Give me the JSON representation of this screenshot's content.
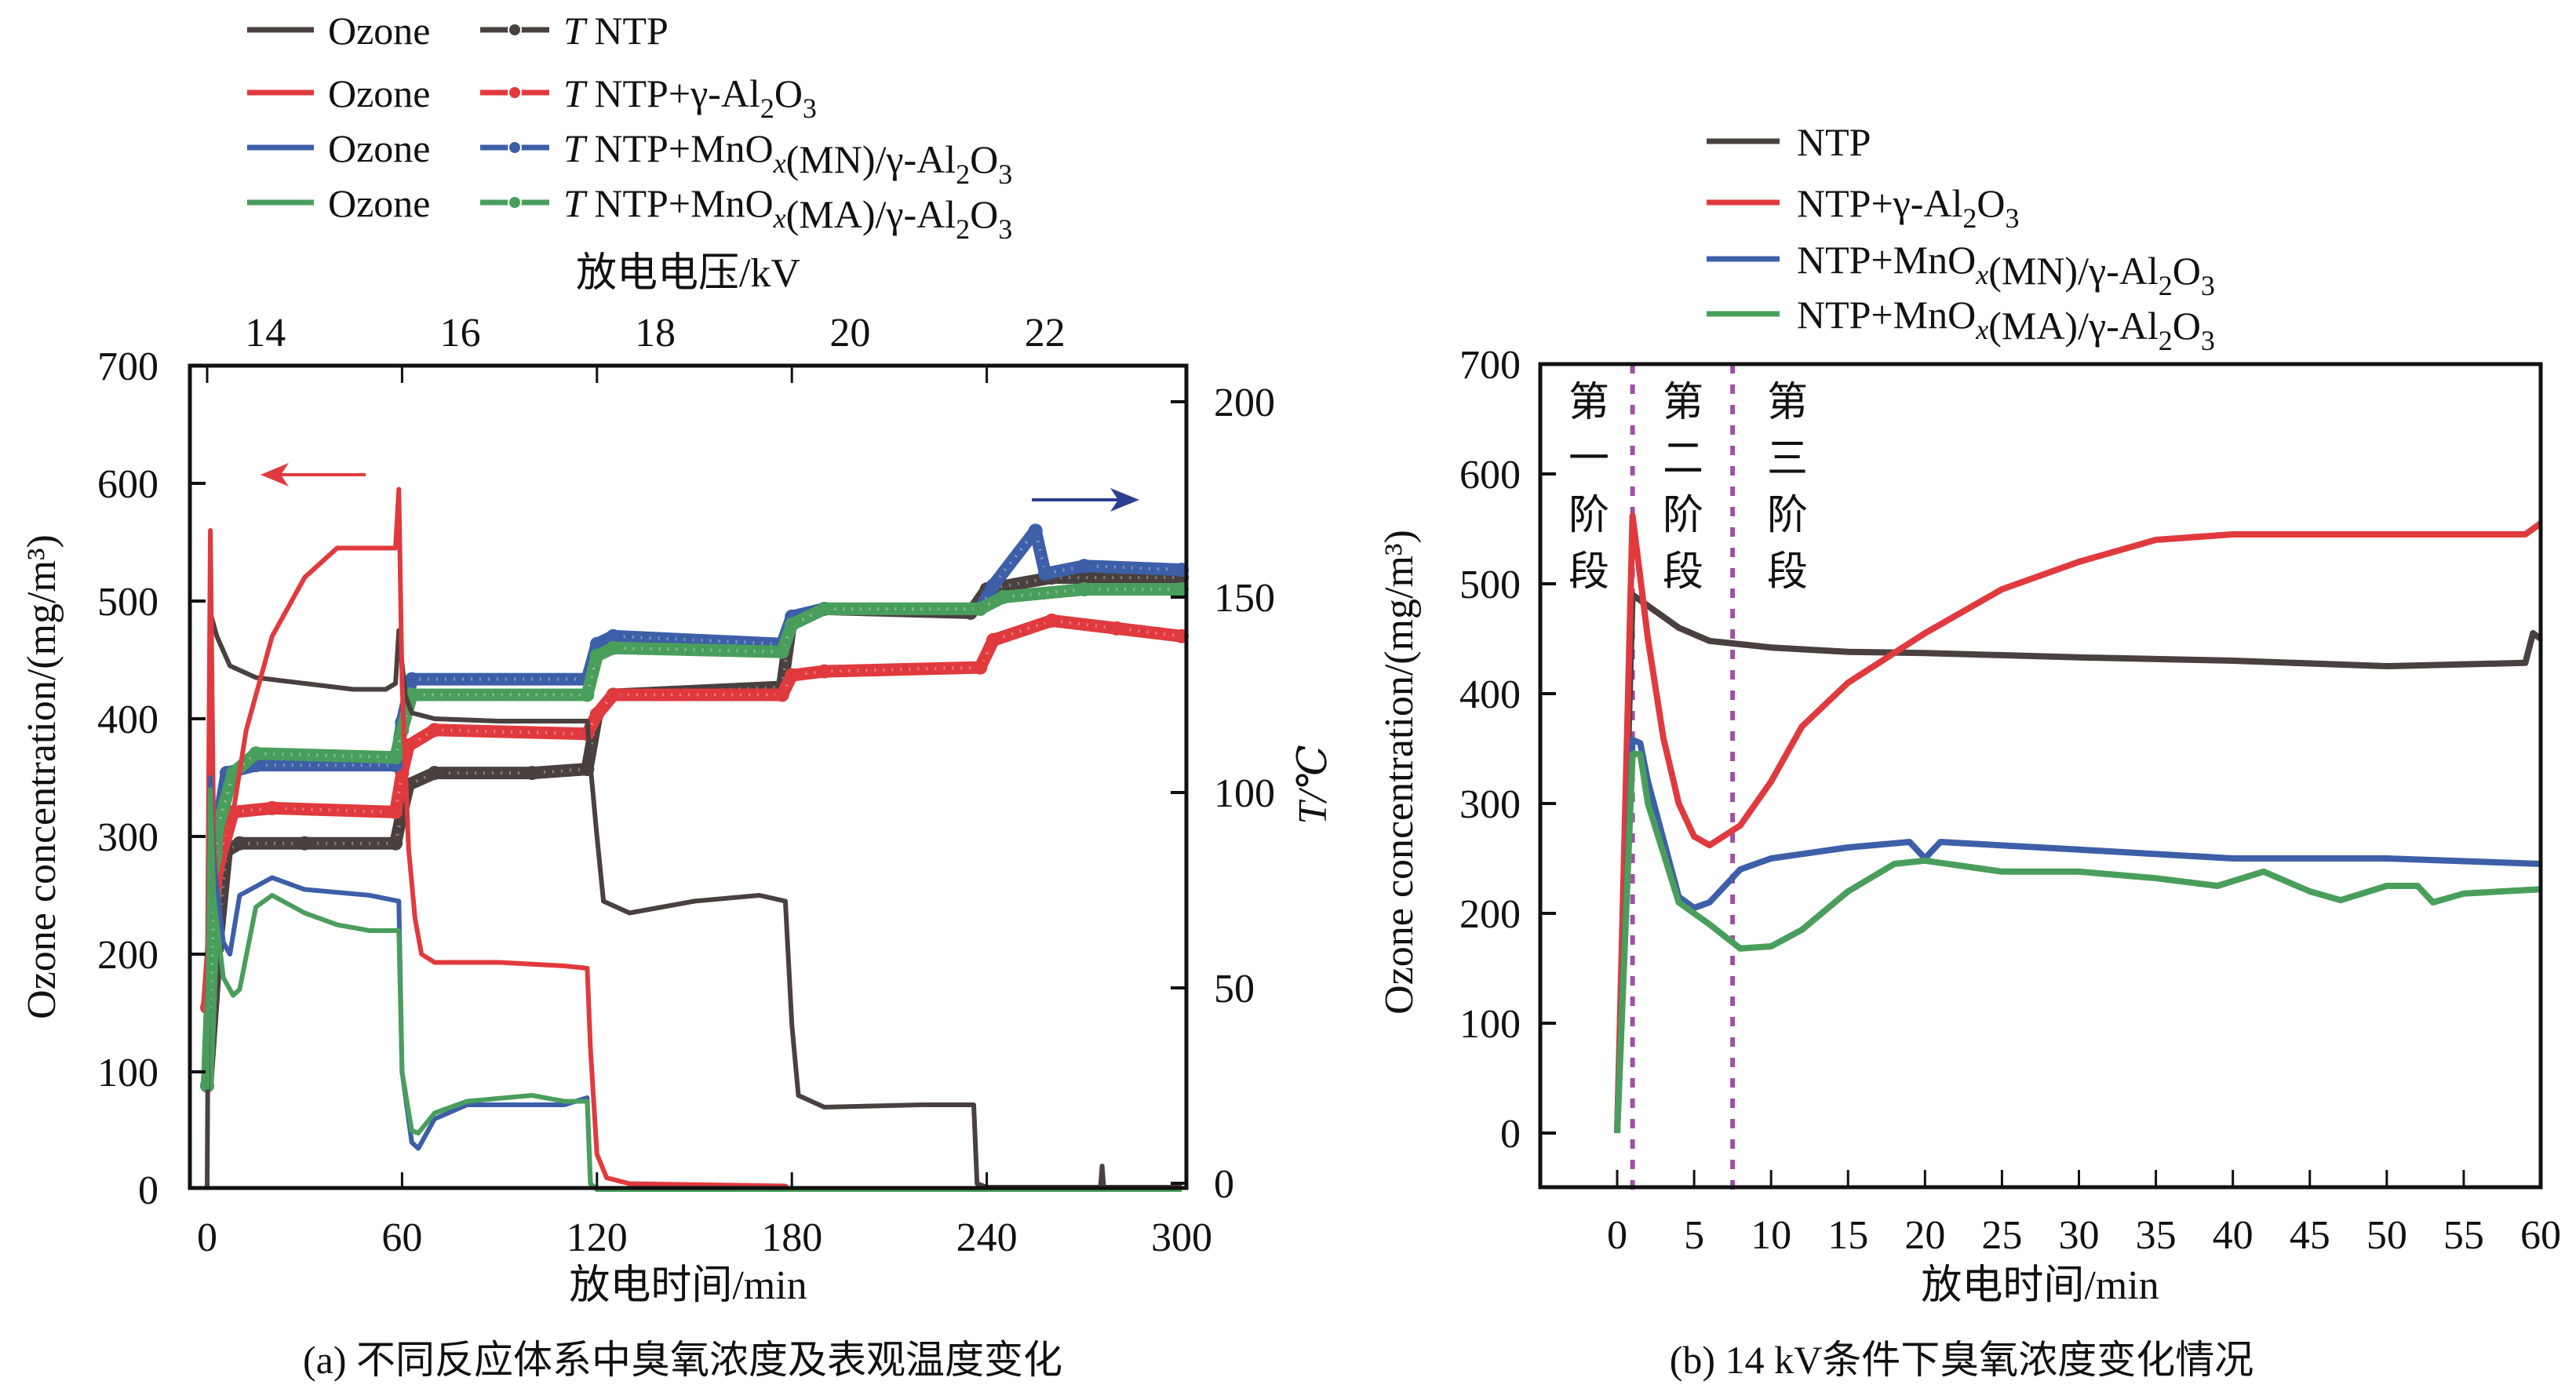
{
  "figure": {
    "caption_a": "(a) 不同反应体系中臭氧浓度及表观温度变化",
    "caption_b": "(b) 14 kV条件下臭氧浓度变化情况"
  },
  "colors": {
    "NTP": "#4a4040",
    "Al2O3": "#e03a3e",
    "MN": "#3d5fa8",
    "MA": "#4a9e5c",
    "stage_divider": "#a050a8",
    "axis": "#111111"
  },
  "chart_data": [
    {
      "id": "a",
      "type": "line",
      "title": "(a) 不同反应体系中臭氧浓度及表观温度变化",
      "xlabel": "放电时间/min",
      "ylabel": "Ozone concentration/(mg/m³)",
      "y2label": "T/℃",
      "x2label": "放电电压/kV",
      "xlim": [
        0,
        300
      ],
      "ylim": [
        0,
        700
      ],
      "y2lim": [
        0,
        200
      ],
      "xticks": [
        0,
        60,
        120,
        180,
        240,
        300
      ],
      "yticks": [
        0,
        100,
        200,
        300,
        400,
        500,
        600,
        700
      ],
      "y2ticks": [
        0,
        50,
        100,
        150,
        200
      ],
      "x2ticks": [
        {
          "label": "14",
          "at_time": 30
        },
        {
          "label": "16",
          "at_time": 90
        },
        {
          "label": "18",
          "at_time": 150
        },
        {
          "label": "20",
          "at_time": 210
        },
        {
          "label": "22",
          "at_time": 270
        }
      ],
      "x2_tick_marks_at_time": [
        0,
        60,
        120,
        180,
        240
      ],
      "annotations": [
        {
          "type": "arrow",
          "direction": "left",
          "color": "#e03a3e",
          "meaning": "ozone on left axis"
        },
        {
          "type": "arrow",
          "direction": "right",
          "color": "#2c3e8c",
          "meaning": "temperature on right axis"
        }
      ],
      "legend": {
        "placement": "top-left-outside",
        "entries": [
          {
            "ozone": "Ozone",
            "temp": "T NTP",
            "key": "NTP"
          },
          {
            "ozone": "Ozone",
            "temp": "T NTP+γ-Al2O3",
            "key": "Al2O3"
          },
          {
            "ozone": "Ozone",
            "temp": "T NTP+MnOx(MN)/γ-Al2O3",
            "key": "MN"
          },
          {
            "ozone": "Ozone",
            "temp": "T NTP+MnOx(MA)/γ-Al2O3",
            "key": "MA"
          }
        ]
      },
      "ozone_series": [
        {
          "key": "NTP",
          "name": "Ozone (NTP)",
          "x": [
            0,
            1,
            3,
            7,
            15,
            30,
            45,
            55,
            58,
            59,
            61,
            63,
            70,
            90,
            117,
            118,
            120,
            122,
            130,
            150,
            170,
            178,
            180,
            182,
            190,
            220,
            236,
            237,
            240,
            275,
            275.5,
            276,
            300
          ],
          "y": [
            0,
            490,
            470,
            445,
            435,
            430,
            425,
            425,
            430,
            475,
            420,
            405,
            400,
            398,
            398,
            360,
            300,
            245,
            235,
            245,
            250,
            245,
            140,
            80,
            70,
            72,
            72,
            5,
            2,
            2,
            20,
            2,
            2
          ]
        },
        {
          "key": "Al2O3",
          "name": "Ozone (NTP+γ-Al2O3)",
          "x": [
            0,
            1,
            2,
            3,
            8,
            12,
            20,
            30,
            40,
            58,
            59,
            60,
            62,
            64,
            66,
            70,
            90,
            110,
            117,
            118,
            120,
            123,
            130,
            178,
            179,
            300
          ],
          "y": [
            150,
            560,
            300,
            250,
            320,
            390,
            470,
            520,
            545,
            545,
            595,
            430,
            290,
            230,
            200,
            193,
            193,
            190,
            188,
            120,
            30,
            10,
            5,
            3,
            0,
            0
          ]
        },
        {
          "key": "MN",
          "name": "Ozone (NTP+MnOx(MN)/γ-Al2O3)",
          "x": [
            0,
            1,
            2,
            5,
            7,
            10,
            20,
            30,
            50,
            59,
            60,
            63,
            65,
            70,
            80,
            100,
            110,
            117,
            118,
            120,
            300
          ],
          "y": [
            90,
            350,
            280,
            210,
            200,
            250,
            265,
            255,
            250,
            245,
            100,
            40,
            35,
            60,
            72,
            72,
            72,
            78,
            5,
            0,
            0
          ]
        },
        {
          "key": "MA",
          "name": "Ozone (NTP+MnOx(MA)/γ-Al2O3)",
          "x": [
            0,
            1,
            2,
            5,
            8,
            10,
            15,
            20,
            30,
            40,
            50,
            59,
            60,
            63,
            65,
            70,
            80,
            100,
            110,
            117,
            118,
            120,
            300
          ],
          "y": [
            85,
            340,
            250,
            180,
            165,
            170,
            240,
            250,
            235,
            225,
            220,
            220,
            100,
            50,
            48,
            65,
            75,
            80,
            75,
            75,
            5,
            0,
            0
          ]
        }
      ],
      "temperature_series": [
        {
          "key": "NTP",
          "name": "T NTP",
          "x": [
            0,
            3,
            6,
            10,
            30,
            58,
            60,
            62,
            70,
            100,
            117,
            120,
            125,
            177,
            180,
            190,
            235,
            240,
            260,
            300
          ],
          "y": [
            25,
            60,
            85,
            87,
            87,
            87,
            95,
            102,
            105,
            105,
            106,
            120,
            125,
            127,
            145,
            147,
            146,
            152,
            155,
            155
          ]
        },
        {
          "key": "Al2O3",
          "name": "T NTP+γ-Al2O3",
          "x": [
            0,
            3,
            8,
            20,
            58,
            60,
            62,
            70,
            117,
            120,
            125,
            177,
            180,
            190,
            238,
            242,
            260,
            280,
            300
          ],
          "y": [
            45,
            80,
            95,
            96,
            95,
            105,
            112,
            116,
            115,
            120,
            125,
            125,
            130,
            131,
            132,
            139,
            144,
            142,
            140
          ]
        },
        {
          "key": "MN",
          "name": "T NTP+MnOx(MN)/γ-Al2O3",
          "x": [
            0,
            3,
            6,
            15,
            58,
            60,
            63,
            117,
            120,
            125,
            177,
            180,
            190,
            238,
            242,
            255,
            258,
            270,
            300
          ],
          "y": [
            25,
            90,
            105,
            107,
            107,
            118,
            129,
            129,
            138,
            140,
            138,
            145,
            147,
            147,
            153,
            167,
            156,
            158,
            157
          ]
        },
        {
          "key": "MA",
          "name": "T NTP+MnOx(MA)/γ-Al2O3",
          "x": [
            0,
            3,
            8,
            15,
            58,
            60,
            63,
            117,
            120,
            125,
            177,
            180,
            190,
            238,
            245,
            270,
            300
          ],
          "y": [
            25,
            90,
            105,
            110,
            109,
            116,
            125,
            125,
            135,
            137,
            136,
            143,
            147,
            147,
            150,
            152,
            152
          ]
        }
      ]
    },
    {
      "id": "b",
      "type": "line",
      "title": "(b) 14 kV条件下臭氧浓度变化情况",
      "xlabel": "放电时间/min",
      "ylabel": "Ozone concentration/(mg/m³)",
      "xlim": [
        -5,
        60
      ],
      "ylim": [
        -50,
        700
      ],
      "xticks": [
        0,
        5,
        10,
        15,
        20,
        25,
        30,
        35,
        40,
        45,
        50,
        55,
        60
      ],
      "yticks": [
        0,
        100,
        200,
        300,
        400,
        500,
        600,
        700
      ],
      "stage_dividers_at_time": [
        1,
        7.5
      ],
      "stage_labels": [
        {
          "text": "第一阶段",
          "chars": [
            "第",
            "一",
            "阶",
            "段"
          ]
        },
        {
          "text": "第二阶段",
          "chars": [
            "第",
            "二",
            "阶",
            "段"
          ]
        },
        {
          "text": "第三阶段",
          "chars": [
            "第",
            "三",
            "阶",
            "段"
          ]
        }
      ],
      "legend": {
        "placement": "top-outside",
        "entries": [
          {
            "label": "NTP",
            "key": "NTP"
          },
          {
            "label": "NTP+γ-Al2O3",
            "key": "Al2O3"
          },
          {
            "label": "NTP+MnOx(MN)/γ-Al2O3",
            "key": "MN"
          },
          {
            "label": "NTP+MnOx(MA)/γ-Al2O3",
            "key": "MA"
          }
        ]
      },
      "series": [
        {
          "key": "NTP",
          "name": "NTP",
          "x": [
            0,
            1,
            2,
            4,
            6,
            8,
            10,
            15,
            20,
            30,
            40,
            50,
            59,
            59.5,
            60
          ],
          "y": [
            0,
            490,
            480,
            460,
            448,
            445,
            442,
            438,
            437,
            433,
            430,
            425,
            428,
            455,
            450
          ]
        },
        {
          "key": "Al2O3",
          "name": "NTP+γ-Al2O3",
          "x": [
            0,
            1,
            2,
            3,
            4,
            5,
            6,
            8,
            10,
            12,
            15,
            20,
            25,
            30,
            35,
            40,
            50,
            59,
            60
          ],
          "y": [
            0,
            562,
            450,
            360,
            300,
            270,
            262,
            280,
            320,
            370,
            410,
            455,
            495,
            520,
            540,
            545,
            545,
            545,
            555
          ]
        },
        {
          "key": "MN",
          "name": "NTP+MnOx(MN)/γ-Al2O3",
          "x": [
            0,
            1,
            1.5,
            2,
            4,
            5,
            6,
            8,
            10,
            15,
            19,
            20,
            21,
            30,
            40,
            50,
            60
          ],
          "y": [
            0,
            358,
            355,
            320,
            215,
            205,
            210,
            240,
            250,
            260,
            265,
            250,
            265,
            258,
            250,
            250,
            245
          ]
        },
        {
          "key": "MA",
          "name": "NTP+MnOx(MA)/γ-Al2O3",
          "x": [
            0,
            1,
            1.5,
            2,
            4,
            6,
            8,
            10,
            12,
            15,
            18,
            20,
            25,
            30,
            35,
            39,
            42,
            45,
            47,
            50,
            52,
            53,
            55,
            60
          ],
          "y": [
            0,
            345,
            345,
            300,
            210,
            190,
            168,
            170,
            185,
            220,
            245,
            248,
            238,
            238,
            232,
            225,
            238,
            220,
            212,
            225,
            225,
            210,
            218,
            222
          ]
        }
      ]
    }
  ]
}
